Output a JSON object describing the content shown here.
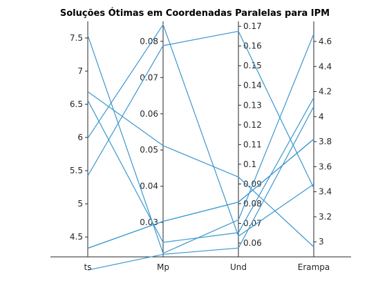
{
  "chart_data": {
    "type": "line",
    "title": "Soluções Ótimas em Coordenadas Paralelas para IPM",
    "axes": [
      {
        "name": "ts",
        "range": [
          4.2,
          7.75
        ],
        "ticks": [
          4.5,
          5,
          5.5,
          6,
          6.5,
          7,
          7.5
        ],
        "tick_labels": [
          "4.5",
          "5",
          "5.5",
          "6",
          "6.5",
          "7",
          "7.5"
        ],
        "tick_side": "left"
      },
      {
        "name": "Mp",
        "range": [
          0.0205,
          0.0855
        ],
        "ticks": [
          0.03,
          0.04,
          0.05,
          0.06,
          0.07,
          0.08
        ],
        "tick_labels": [
          "0.03",
          "0.04",
          "0.05",
          "0.06",
          "0.07",
          "0.08"
        ],
        "tick_side": "left"
      },
      {
        "name": "Und",
        "range": [
          0.053,
          0.1725
        ],
        "ticks": [
          0.06,
          0.07,
          0.08,
          0.09,
          0.1,
          0.11,
          0.12,
          0.13,
          0.14,
          0.15,
          0.16,
          0.17
        ],
        "tick_labels": [
          "0.06",
          "0.07",
          "0.08",
          "0.09",
          "0.1",
          "0.11",
          "0.12",
          "0.13",
          "0.14",
          "0.15",
          "0.16",
          "0.17"
        ],
        "tick_side": "right"
      },
      {
        "name": "Erampa",
        "range": [
          2.88,
          4.76
        ],
        "ticks": [
          3,
          3.2,
          3.4,
          3.6,
          3.8,
          4,
          4.2,
          4.4,
          4.6
        ],
        "tick_labels": [
          "3",
          "3.2",
          "3.4",
          "3.6",
          "3.8",
          "4",
          "4.2",
          "4.4",
          "4.6"
        ],
        "tick_side": "right"
      }
    ],
    "categories": [
      "ts",
      "Mp",
      "Und",
      "Erampa"
    ],
    "series": [
      {
        "values": [
          7.54,
          0.0215,
          0.0718,
          4.66
        ]
      },
      {
        "values": [
          6.69,
          0.0512,
          0.0935,
          2.96
        ]
      },
      {
        "values": [
          6.56,
          0.0245,
          0.0653,
          4.15
        ]
      },
      {
        "values": [
          5.99,
          0.0846,
          0.0635,
          3.46
        ]
      },
      {
        "values": [
          5.42,
          0.0788,
          0.1675,
          3.43
        ]
      },
      {
        "values": [
          4.33,
          0.0303,
          0.0808,
          3.82
        ]
      },
      {
        "values": [
          4.33,
          0.0303,
          0.0808,
          3.82
        ],
        "note": ""
      },
      {
        "values": [
          4.0,
          0.0212,
          0.0575,
          4.08
        ]
      }
    ],
    "colors": {
      "line": "#3a97cf",
      "axis": "#262626"
    }
  }
}
